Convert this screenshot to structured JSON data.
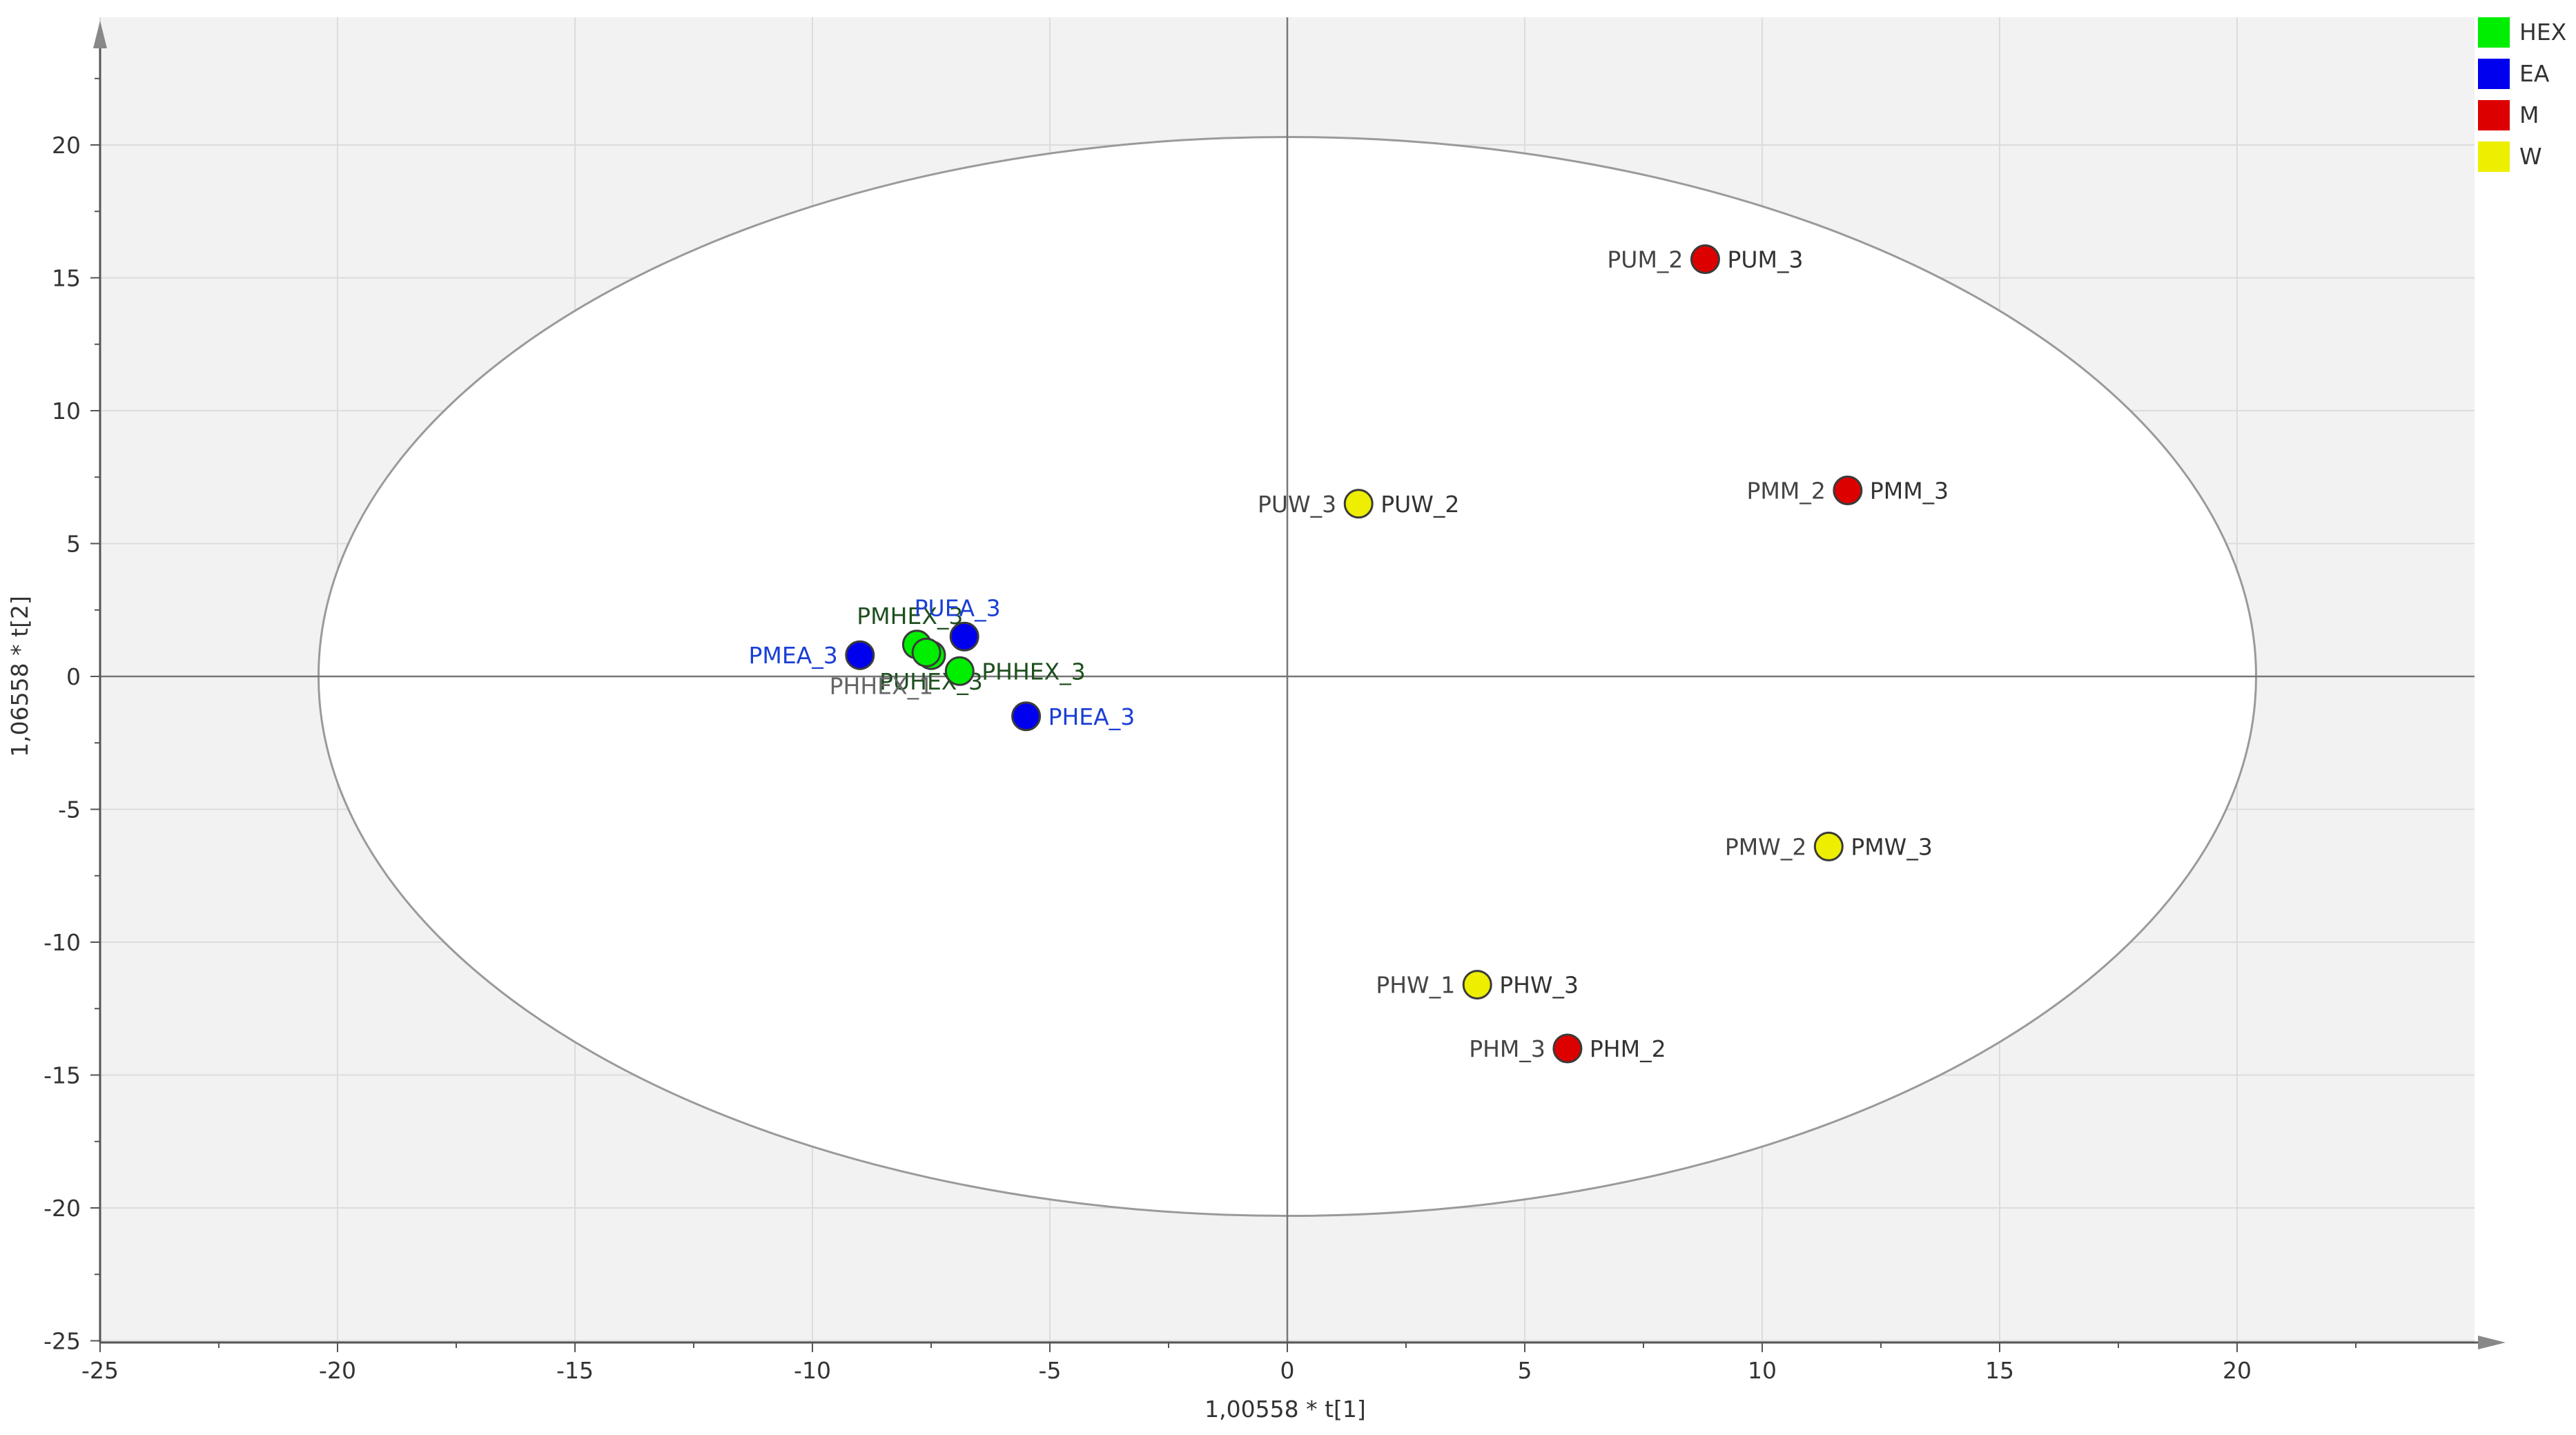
{
  "chart_data": {
    "type": "scatter",
    "title": "",
    "xlabel": "1,00558 * t[1]",
    "ylabel": "1,06558 * t[2]",
    "xlim": [
      -25,
      25
    ],
    "ylim": [
      -25,
      25
    ],
    "xticks": [
      -25,
      -20,
      -15,
      -10,
      -5,
      0,
      5,
      10,
      15,
      20
    ],
    "yticks": [
      -25,
      -20,
      -15,
      -10,
      -5,
      0,
      5,
      10,
      15,
      20
    ],
    "grid": true,
    "ellipse": {
      "center": [
        0,
        0
      ],
      "rx": 20.4,
      "ry": 20.3
    },
    "legend_position": "top-right",
    "series": [
      {
        "name": "HEX",
        "color": "#00ee00",
        "label_color": "#1f4f1f",
        "points": [
          {
            "x": -7.8,
            "y": 1.2,
            "label": "PMHEX_3",
            "label_side": "above"
          },
          {
            "x": -7.5,
            "y": 0.8,
            "label": "PUHEX_3",
            "label_side": "below"
          },
          {
            "x": -6.9,
            "y": 0.2,
            "label": "PHHEX_3",
            "label_side": "right"
          },
          {
            "x": -7.6,
            "y": 0.9,
            "label": "PHHEX_1",
            "label_side": "below-left",
            "label_color": "#666666"
          }
        ]
      },
      {
        "name": "EA",
        "color": "#0000ee",
        "label_color": "#1a3fd6",
        "points": [
          {
            "x": -9.0,
            "y": 0.8,
            "label": "PMEA_3",
            "label_side": "left"
          },
          {
            "x": -6.8,
            "y": 1.5,
            "label": "PUEA_3",
            "label_side": "above"
          },
          {
            "x": -5.5,
            "y": -1.5,
            "label": "PHEA_3",
            "label_side": "right"
          }
        ]
      },
      {
        "name": "M",
        "color": "#dd0000",
        "label_color": "#333333",
        "points": [
          {
            "x": 8.8,
            "y": 15.7,
            "label": "PUM_3",
            "label_side": "right",
            "label_left": "PUM_2"
          },
          {
            "x": 11.8,
            "y": 7.0,
            "label": "PMM_3",
            "label_side": "right",
            "label_left": "PMM_2"
          },
          {
            "x": 5.9,
            "y": -14.0,
            "label": "PHM_2",
            "label_side": "right",
            "label_left": "PHM_3"
          }
        ]
      },
      {
        "name": "W",
        "color": "#eeee00",
        "label_color": "#333333",
        "points": [
          {
            "x": 1.5,
            "y": 6.5,
            "label": "PUW_2",
            "label_side": "right",
            "label_left": "PUW_3"
          },
          {
            "x": 11.4,
            "y": -6.4,
            "label": "PMW_3",
            "label_side": "right",
            "label_left": "PMW_2"
          },
          {
            "x": 4.0,
            "y": -11.6,
            "label": "PHW_3",
            "label_side": "right",
            "label_left": "PHW_1"
          }
        ]
      }
    ]
  }
}
